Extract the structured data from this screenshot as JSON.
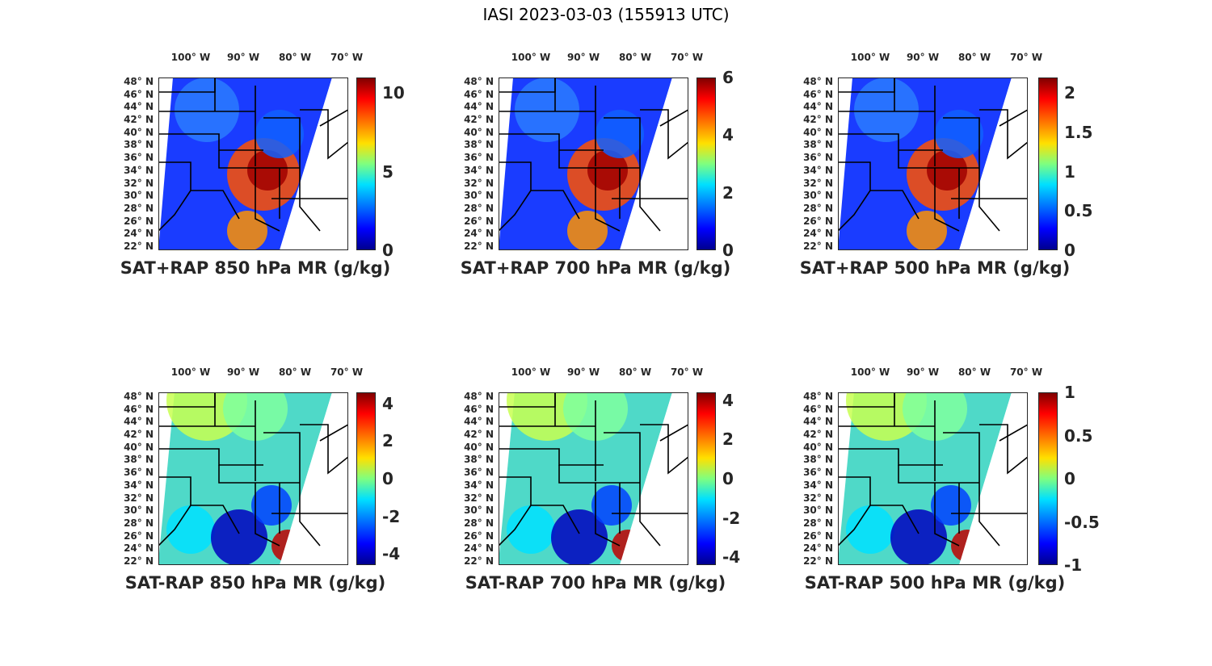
{
  "title": "IASI 2023-03-03 (155913 UTC)",
  "longitude_labels": [
    "100° W",
    "90° W",
    "80° W",
    "70° W"
  ],
  "latitude_labels": [
    "48° N",
    "46° N",
    "44° N",
    "42° N",
    "40° N",
    "38° N",
    "36° N",
    "34° N",
    "32° N",
    "30° N",
    "28° N",
    "26° N",
    "24° N",
    "22° N"
  ],
  "colormap": [
    "#00008f",
    "#0000ff",
    "#0070ff",
    "#00e0ff",
    "#7fff7f",
    "#ffe000",
    "#ff7000",
    "#ff0000",
    "#800000"
  ],
  "panels": [
    {
      "caption": "SAT+RAP 850 hPa MR (g/kg)",
      "cbar_min": 0,
      "cbar_max": 11,
      "ticks": [
        "10",
        "5",
        "0"
      ],
      "tick_values": [
        10,
        5,
        0
      ]
    },
    {
      "caption": "SAT+RAP 700 hPa MR (g/kg)",
      "cbar_min": 0,
      "cbar_max": 6,
      "ticks": [
        "6",
        "4",
        "2",
        "0"
      ],
      "tick_values": [
        6,
        4,
        2,
        0
      ]
    },
    {
      "caption": "SAT+RAP 500 hPa MR (g/kg)",
      "cbar_min": 0,
      "cbar_max": 2.2,
      "ticks": [
        "2",
        "1.5",
        "1",
        "0.5",
        "0"
      ],
      "tick_values": [
        2,
        1.5,
        1,
        0.5,
        0
      ]
    },
    {
      "caption": "SAT-RAP 850 hPa MR (g/kg)",
      "cbar_min": -4.6,
      "cbar_max": 4.6,
      "ticks": [
        "4",
        "2",
        "0",
        "-2",
        "-4"
      ],
      "tick_values": [
        4,
        2,
        0,
        -2,
        -4
      ]
    },
    {
      "caption": "SAT-RAP 700 hPa MR (g/kg)",
      "cbar_min": -4.4,
      "cbar_max": 4.4,
      "ticks": [
        "4",
        "2",
        "0",
        "-2",
        "-4"
      ],
      "tick_values": [
        4,
        2,
        0,
        -2,
        -4
      ]
    },
    {
      "caption": "SAT-RAP 500 hPa MR (g/kg)",
      "cbar_min": -1,
      "cbar_max": 1,
      "ticks": [
        "1",
        "0.5",
        "0",
        "-0.5",
        "-1"
      ],
      "tick_values": [
        1,
        0.5,
        0,
        -0.5,
        -1
      ]
    }
  ]
}
